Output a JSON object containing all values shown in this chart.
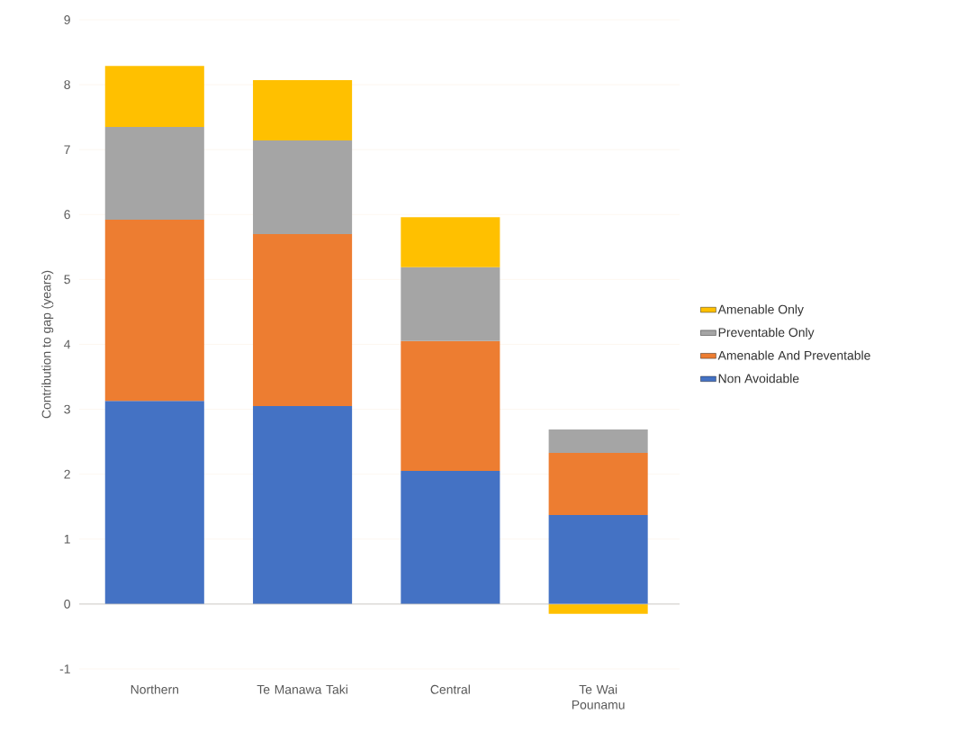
{
  "chart_data": {
    "type": "bar",
    "stacked": true,
    "ylabel": "Contribution to gap (years)",
    "categories": [
      "Northern",
      "Te Manawa Taki",
      "Central",
      "Te Wai Pounamu"
    ],
    "series": [
      {
        "name": "Non Avoidable",
        "color": "#4472c4",
        "values": [
          3.13,
          3.05,
          2.05,
          1.37
        ]
      },
      {
        "name": "Amenable And Preventable",
        "color": "#ed7d31",
        "values": [
          2.79,
          2.65,
          2.0,
          0.96
        ]
      },
      {
        "name": "Preventable Only",
        "color": "#a5a5a5",
        "values": [
          1.43,
          1.44,
          1.14,
          0.36
        ]
      },
      {
        "name": "Amenable Only",
        "color": "#ffc000",
        "values": [
          0.94,
          0.93,
          0.77,
          -0.15
        ]
      }
    ],
    "ylim": [
      -1,
      9
    ],
    "yticks": [
      -1,
      0,
      1,
      2,
      3,
      4,
      5,
      6,
      7,
      8,
      9
    ],
    "grid": "y",
    "legend": "right"
  }
}
